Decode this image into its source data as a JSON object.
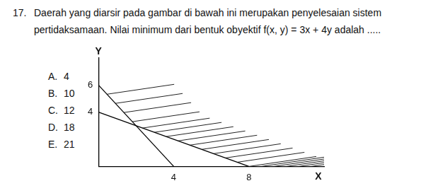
{
  "question": {
    "number": "17.",
    "lines": [
      "Daerah yang diarsir pada gambar di bawah ini merupakan penyelesaian sistem",
      "pertidaksamaan. Nilai minimum dari bentuk obyektif f(x, y) = 3x + 4y adalah ....."
    ]
  },
  "options": [
    {
      "letter": "A.",
      "text": "4"
    },
    {
      "letter": "B.",
      "text": "10"
    },
    {
      "letter": "C.",
      "text": "12"
    },
    {
      "letter": "D.",
      "text": "18"
    },
    {
      "letter": "E.",
      "text": "21"
    }
  ],
  "chart_data": {
    "type": "line",
    "x_label": "X",
    "y_label": "Y",
    "series": [
      {
        "x": [
          0,
          4
        ],
        "values": [
          6,
          0
        ],
        "color": "#000000"
      },
      {
        "x": [
          0,
          8
        ],
        "values": [
          4,
          0
        ],
        "color": "#000000"
      }
    ],
    "xlim": [
      0,
      12
    ],
    "ylim": [
      0,
      8
    ],
    "xticks": [
      4,
      8
    ],
    "yticks": [
      4,
      6
    ],
    "grid": false
  }
}
